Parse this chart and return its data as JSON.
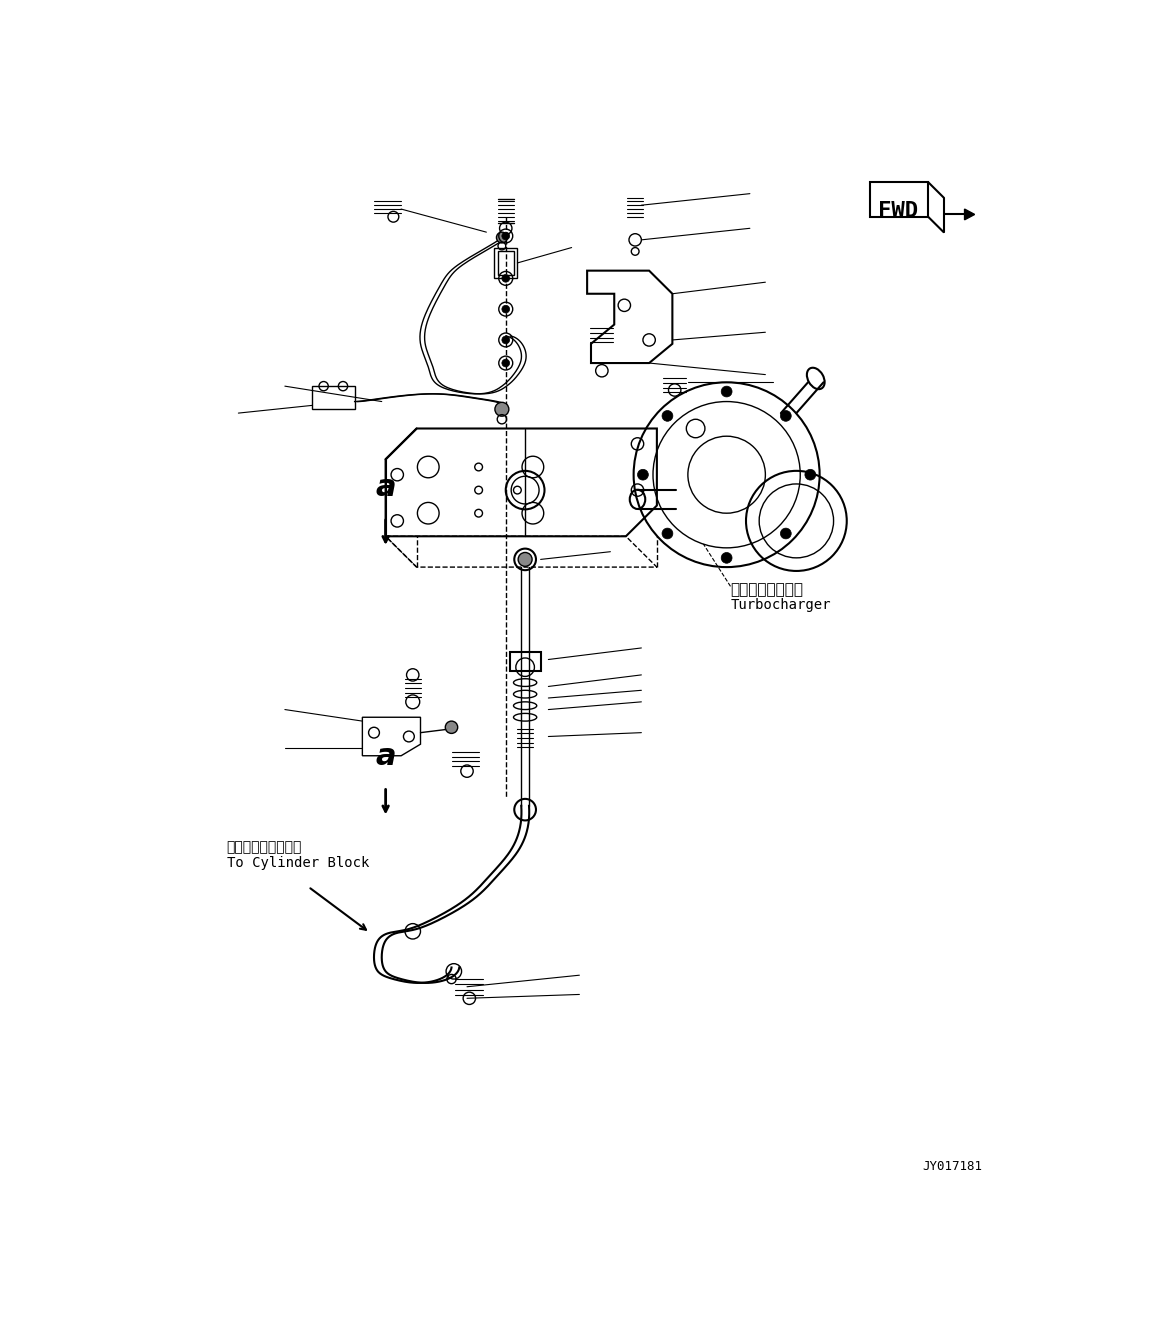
{
  "bg_color": "#ffffff",
  "lc": "#000000",
  "fig_width": 11.63,
  "fig_height": 13.25,
  "label_turbo_jp": "ターボチャージャ",
  "label_turbo_en": "Turbocharger",
  "label_cylinder_jp": "シリンダブロックヘ",
  "label_cylinder_en": "To Cylinder Block",
  "part_number": "JY017181",
  "fwd_text": "FWD"
}
